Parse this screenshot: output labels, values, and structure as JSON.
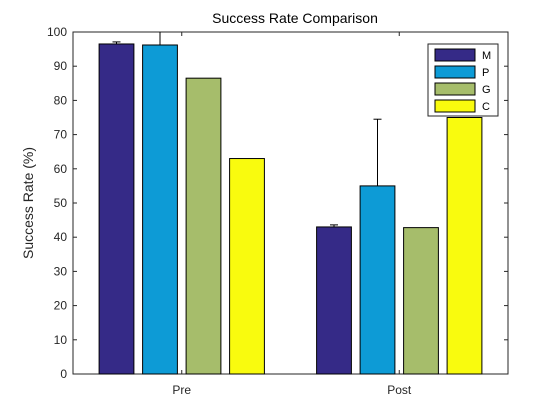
{
  "chart_data": {
    "type": "bar",
    "title": "Success Rate Comparison",
    "xlabel": "",
    "ylabel": "Success Rate (%)",
    "categories": [
      "Pre",
      "Post"
    ],
    "ylim": [
      0,
      100
    ],
    "yticks": [
      0,
      10,
      20,
      30,
      40,
      50,
      60,
      70,
      80,
      90,
      100
    ],
    "grid": false,
    "legend_position": "top-right",
    "series": [
      {
        "name": "M",
        "color": "#352a87",
        "values": [
          96.5,
          43.0
        ],
        "errors": [
          0.6,
          0.6
        ]
      },
      {
        "name": "P",
        "color": "#0d9bd6",
        "values": [
          96.2,
          55.0
        ],
        "errors": [
          4.0,
          19.5
        ]
      },
      {
        "name": "G",
        "color": "#a6bd6b",
        "values": [
          86.5,
          42.8
        ],
        "errors": [
          0,
          0
        ]
      },
      {
        "name": "C",
        "color": "#f9fb0e",
        "values": [
          63.0,
          75.0
        ],
        "errors": [
          0,
          0
        ]
      }
    ]
  }
}
